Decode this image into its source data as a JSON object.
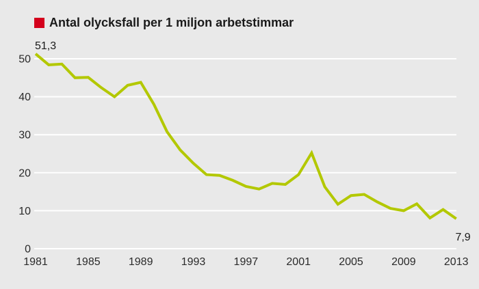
{
  "page": {
    "background_color": "#e9e9e9"
  },
  "chart_data": {
    "type": "line",
    "title": "Antal olycksfall per 1 miljon arbetstimmar",
    "legend_swatch_color": "#d4001c",
    "line_color": "#b3c800",
    "grid_color": "#ffffff",
    "text_color": "#2a2a2a",
    "label_color": "#1a1a1a",
    "x": [
      1981,
      1982,
      1983,
      1984,
      1985,
      1986,
      1987,
      1988,
      1989,
      1990,
      1991,
      1992,
      1993,
      1994,
      1995,
      1996,
      1997,
      1998,
      1999,
      2000,
      2001,
      2002,
      2003,
      2004,
      2005,
      2006,
      2007,
      2008,
      2009,
      2010,
      2011,
      2012,
      2013
    ],
    "values": [
      51.3,
      48.4,
      48.6,
      45.0,
      45.1,
      42.4,
      40.0,
      43.0,
      43.8,
      38.0,
      30.8,
      26.0,
      22.5,
      19.5,
      19.3,
      18.0,
      16.4,
      15.7,
      17.2,
      16.9,
      19.5,
      25.2,
      16.3,
      11.7,
      14.0,
      14.3,
      12.3,
      10.6,
      10.0,
      11.8,
      8.1,
      10.3,
      7.9
    ],
    "ylim": [
      0,
      50
    ],
    "yticks": [
      0,
      10,
      20,
      30,
      40,
      50
    ],
    "ytick_labels": [
      "0",
      "10",
      "20",
      "30",
      "40",
      "50"
    ],
    "xticks": [
      1981,
      1985,
      1989,
      1993,
      1997,
      2001,
      2005,
      2009,
      2013
    ],
    "xtick_labels": [
      "1981",
      "1985",
      "1989",
      "1993",
      "1997",
      "2001",
      "2005",
      "2009",
      "2013"
    ],
    "grid": true,
    "legend_position": "top-left",
    "decimal_separator": ",",
    "annotations": [
      {
        "year": 1981,
        "value": 51.3,
        "label": "51,3",
        "placement": "above-start"
      },
      {
        "year": 2013,
        "value": 7.9,
        "label": "7,9",
        "placement": "below-end"
      }
    ]
  }
}
